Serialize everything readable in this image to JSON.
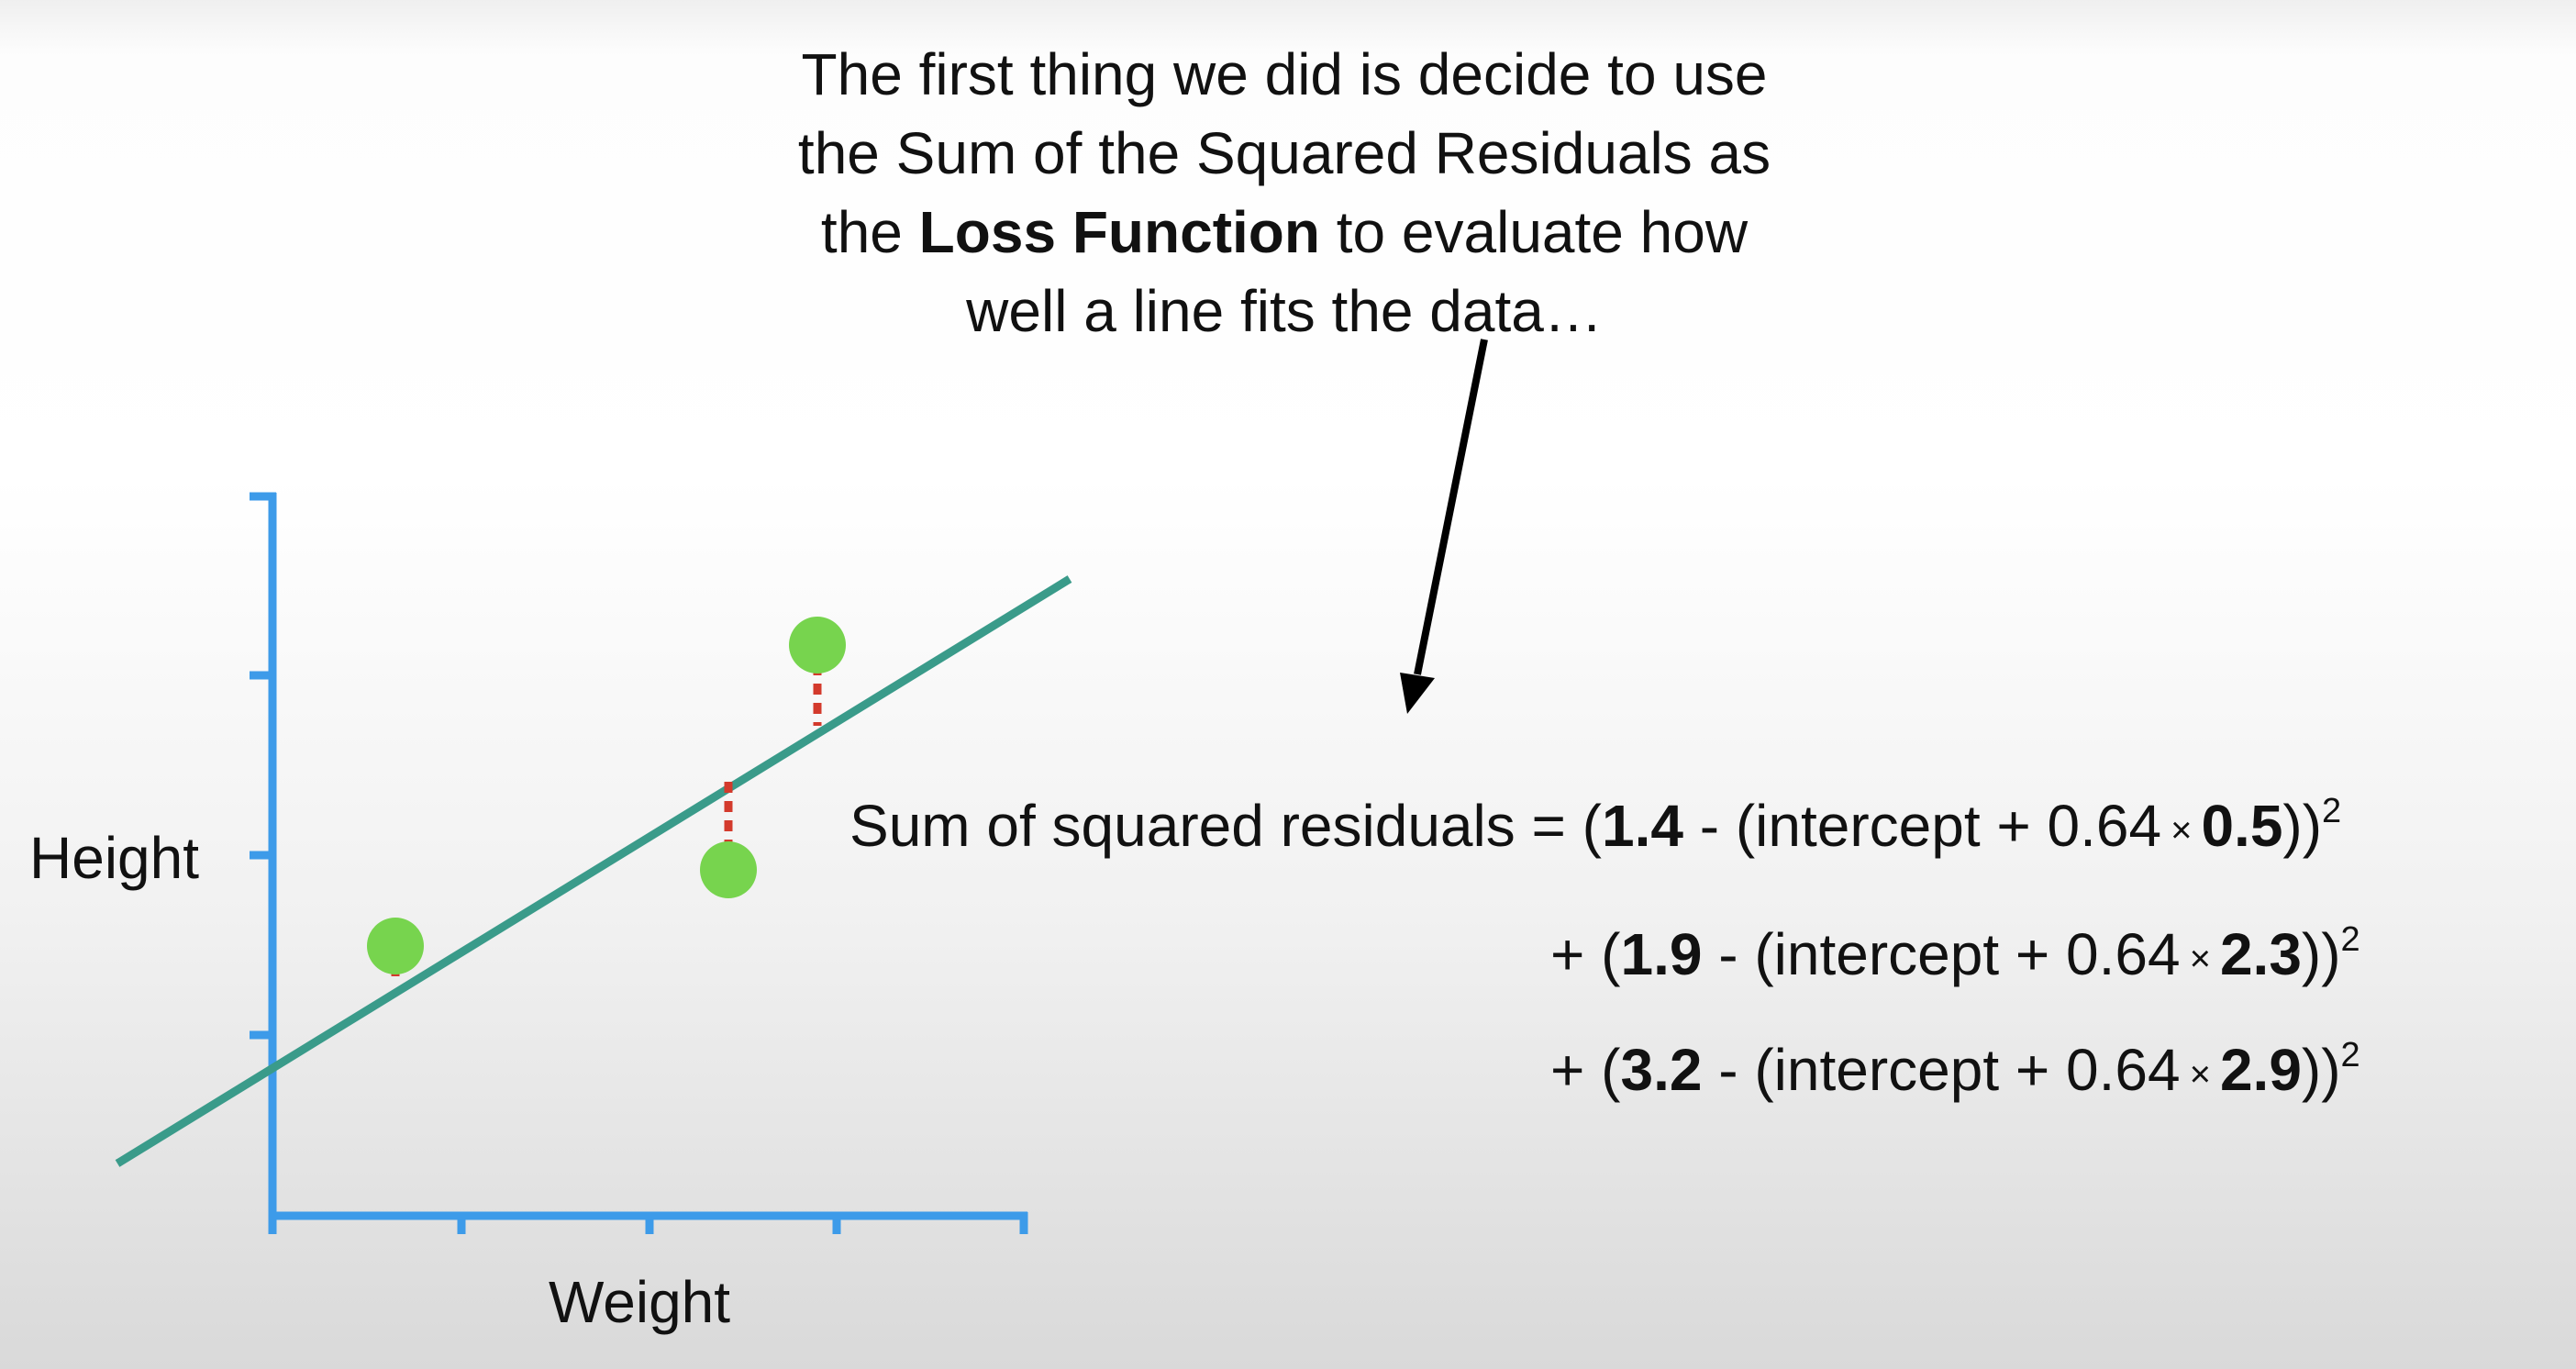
{
  "caption": {
    "line1": "The first thing we did is decide to use",
    "line2": "the Sum of the Squared Residuals as",
    "line3_pre": "the ",
    "line3_bold": "Loss Function",
    "line3_post": " to evaluate how",
    "line4": "well a line fits the data…"
  },
  "plot": {
    "ylabel": "Height",
    "xlabel": "Weight",
    "slope": 0.64,
    "points": [
      {
        "weight": 0.5,
        "height": 1.4
      },
      {
        "weight": 2.3,
        "height": 1.9
      },
      {
        "weight": 2.9,
        "height": 3.2
      }
    ],
    "colors": {
      "axis": "#3d9be9",
      "line": "#3a9b8a",
      "point": "#77d44e",
      "residual": "#d33a2c",
      "arrow": "#000000"
    }
  },
  "equation": {
    "lhs": "Sum of squared residuals = ",
    "intercept_text": "intercept + 0.64",
    "times": "×",
    "square": "2",
    "plus": "+ ",
    "terms": [
      {
        "height": "1.4",
        "weight": "0.5"
      },
      {
        "height": "1.9",
        "weight": "2.3"
      },
      {
        "height": "3.2",
        "weight": "2.9"
      }
    ]
  }
}
